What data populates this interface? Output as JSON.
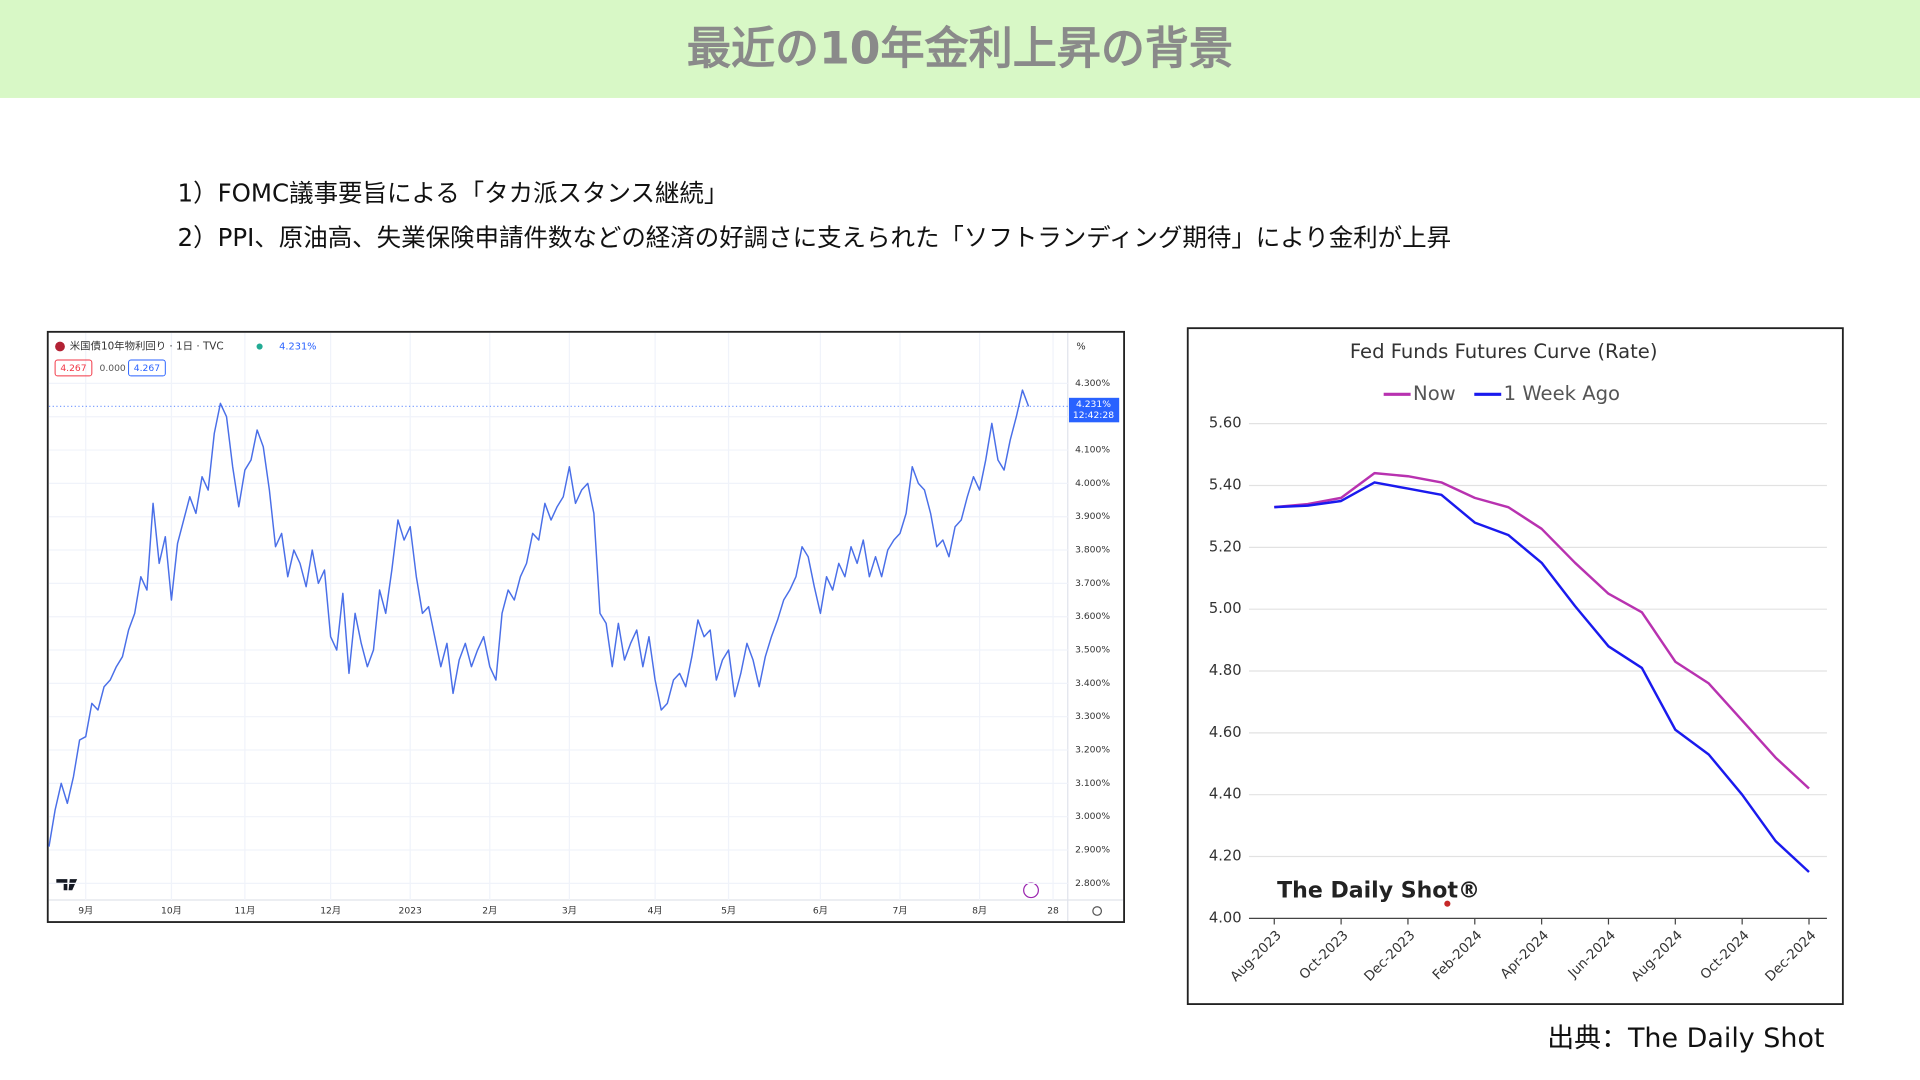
{
  "header": {
    "title": "最近の10年金利上昇の背景"
  },
  "bullets": [
    "1）FOMC議事要旨による「タカ派スタンス継続」",
    "2）PPI、原油高、失業保険申請件数などの経済の好調さに支えられた「ソフトランディング期待」により金利が上昇"
  ],
  "source": "出典：The Daily Shot",
  "chart_data": [
    {
      "type": "line",
      "symbol": "米国債10年物利回り · 1日 · TVC",
      "last_label": "4.231%",
      "ohlc": [
        "4.267",
        "0.000",
        "4.267"
      ],
      "y_unit": "%",
      "price_time": "12:42:28",
      "categories": [
        null,
        null,
        null,
        null,
        null,
        null,
        "9月",
        null,
        null,
        null,
        null,
        null,
        null,
        null,
        null,
        null,
        null,
        null,
        null,
        null,
        "10月",
        null,
        null,
        null,
        null,
        null,
        null,
        null,
        null,
        null,
        null,
        null,
        "11月",
        null,
        null,
        null,
        null,
        null,
        null,
        null,
        null,
        null,
        null,
        null,
        null,
        null,
        "12月",
        null,
        null,
        null,
        null,
        null,
        null,
        null,
        null,
        null,
        null,
        null,
        null,
        "2023",
        null,
        null,
        null,
        null,
        null,
        null,
        null,
        null,
        null,
        null,
        null,
        null,
        "2月",
        null,
        null,
        null,
        null,
        null,
        null,
        null,
        null,
        null,
        null,
        null,
        null,
        "3月",
        null,
        null,
        null,
        null,
        null,
        null,
        null,
        null,
        null,
        null,
        null,
        null,
        null,
        "4月",
        null,
        null,
        null,
        null,
        null,
        null,
        null,
        null,
        null,
        null,
        null,
        "5月",
        null,
        null,
        null,
        null,
        null,
        null,
        null,
        null,
        null,
        null,
        null,
        null,
        null,
        null,
        "6月",
        null,
        null,
        null,
        null,
        null,
        null,
        null,
        null,
        null,
        null,
        null,
        null,
        "7月",
        null,
        null,
        null,
        null,
        null,
        null,
        null,
        null,
        null,
        null,
        null,
        null,
        "8月",
        null,
        null,
        null,
        null,
        null,
        null,
        null,
        null,
        null,
        null,
        null,
        "28"
      ],
      "series": [
        {
          "name": "米国債10年物利回り",
          "color": "#4a6fe8",
          "values": [
            2.91,
            3.02,
            3.1,
            3.04,
            3.12,
            3.23,
            3.24,
            3.34,
            3.32,
            3.39,
            3.41,
            3.45,
            3.48,
            3.56,
            3.61,
            3.72,
            3.68,
            3.94,
            3.76,
            3.84,
            3.65,
            3.82,
            3.89,
            3.96,
            3.91,
            4.02,
            3.98,
            4.15,
            4.24,
            4.2,
            4.05,
            3.93,
            4.04,
            4.07,
            4.16,
            4.11,
            3.98,
            3.81,
            3.85,
            3.72,
            3.8,
            3.76,
            3.69,
            3.8,
            3.7,
            3.74,
            3.54,
            3.5,
            3.67,
            3.43,
            3.61,
            3.52,
            3.45,
            3.5,
            3.68,
            3.61,
            3.74,
            3.89,
            3.83,
            3.87,
            3.72,
            3.61,
            3.63,
            3.54,
            3.45,
            3.52,
            3.37,
            3.47,
            3.52,
            3.45,
            3.5,
            3.54,
            3.45,
            3.41,
            3.61,
            3.68,
            3.65,
            3.72,
            3.76,
            3.85,
            3.83,
            3.94,
            3.89,
            3.93,
            3.96,
            4.05,
            3.94,
            3.98,
            4.0,
            3.91,
            3.61,
            3.58,
            3.45,
            3.58,
            3.47,
            3.52,
            3.56,
            3.45,
            3.54,
            3.41,
            3.32,
            3.34,
            3.41,
            3.43,
            3.39,
            3.48,
            3.59,
            3.54,
            3.56,
            3.41,
            3.47,
            3.5,
            3.36,
            3.43,
            3.52,
            3.47,
            3.39,
            3.48,
            3.54,
            3.59,
            3.65,
            3.68,
            3.72,
            3.81,
            3.78,
            3.69,
            3.61,
            3.72,
            3.68,
            3.76,
            3.72,
            3.81,
            3.76,
            3.83,
            3.72,
            3.78,
            3.72,
            3.8,
            3.83,
            3.85,
            3.91,
            4.05,
            4.0,
            3.98,
            3.91,
            3.81,
            3.83,
            3.78,
            3.87,
            3.89,
            3.96,
            4.02,
            3.98,
            4.07,
            4.18,
            4.07,
            4.04,
            4.13,
            4.2,
            4.28,
            4.231,
            null,
            null,
            null,
            null
          ]
        }
      ],
      "ylim": [
        2.75,
        4.44
      ],
      "yticks": [
        {
          "value": 2.8,
          "label": "2.800%"
        },
        {
          "value": 2.9,
          "label": "2.900%"
        },
        {
          "value": 3.0,
          "label": "3.000%"
        },
        {
          "value": 3.1,
          "label": "3.100%"
        },
        {
          "value": 3.2,
          "label": "3.200%"
        },
        {
          "value": 3.3,
          "label": "3.300%"
        },
        {
          "value": 3.4,
          "label": "3.400%"
        },
        {
          "value": 3.5,
          "label": "3.500%"
        },
        {
          "value": 3.6,
          "label": "3.600%"
        },
        {
          "value": 3.7,
          "label": "3.700%"
        },
        {
          "value": 3.8,
          "label": "3.800%"
        },
        {
          "value": 3.9,
          "label": "3.900%"
        },
        {
          "value": 4.0,
          "label": "4.000%"
        },
        {
          "value": 4.1,
          "label": "4.100%"
        },
        {
          "value": 4.2,
          "label": "4.200%"
        },
        {
          "value": 4.3,
          "label": "4.300%"
        }
      ],
      "grid": true
    },
    {
      "type": "line",
      "title": "Fed Funds Futures Curve (Rate)",
      "watermark": "The Daily Shot®",
      "categories": [
        "Aug-2023",
        null,
        "Oct-2023",
        null,
        "Dec-2023",
        null,
        "Feb-2024",
        null,
        "Apr-2024",
        null,
        "Jun-2024",
        null,
        "Aug-2024",
        null,
        "Oct-2024",
        null,
        "Dec-2024"
      ],
      "series": [
        {
          "name": "Now",
          "color": "#b832b0",
          "values": [
            5.33,
            5.34,
            5.36,
            5.44,
            5.43,
            5.41,
            5.36,
            5.33,
            5.26,
            5.15,
            5.05,
            4.99,
            4.83,
            4.76,
            4.64,
            4.52,
            4.42
          ]
        },
        {
          "name": "1 Week Ago",
          "color": "#1a1aee",
          "values": [
            5.33,
            5.335,
            5.35,
            5.41,
            5.39,
            5.37,
            5.28,
            5.24,
            5.15,
            5.01,
            4.88,
            4.81,
            4.61,
            4.53,
            4.4,
            4.25,
            4.15
          ]
        }
      ],
      "ylim": [
        4.0,
        5.6
      ],
      "yticks": [
        {
          "value": 4.0,
          "label": "4.00"
        },
        {
          "value": 4.2,
          "label": "4.20"
        },
        {
          "value": 4.4,
          "label": "4.40"
        },
        {
          "value": 4.6,
          "label": "4.60"
        },
        {
          "value": 4.8,
          "label": "4.80"
        },
        {
          "value": 5.0,
          "label": "5.00"
        },
        {
          "value": 5.2,
          "label": "5.20"
        },
        {
          "value": 5.4,
          "label": "5.40"
        },
        {
          "value": 5.6,
          "label": "5.60"
        }
      ],
      "grid": true,
      "legend": "top"
    }
  ]
}
